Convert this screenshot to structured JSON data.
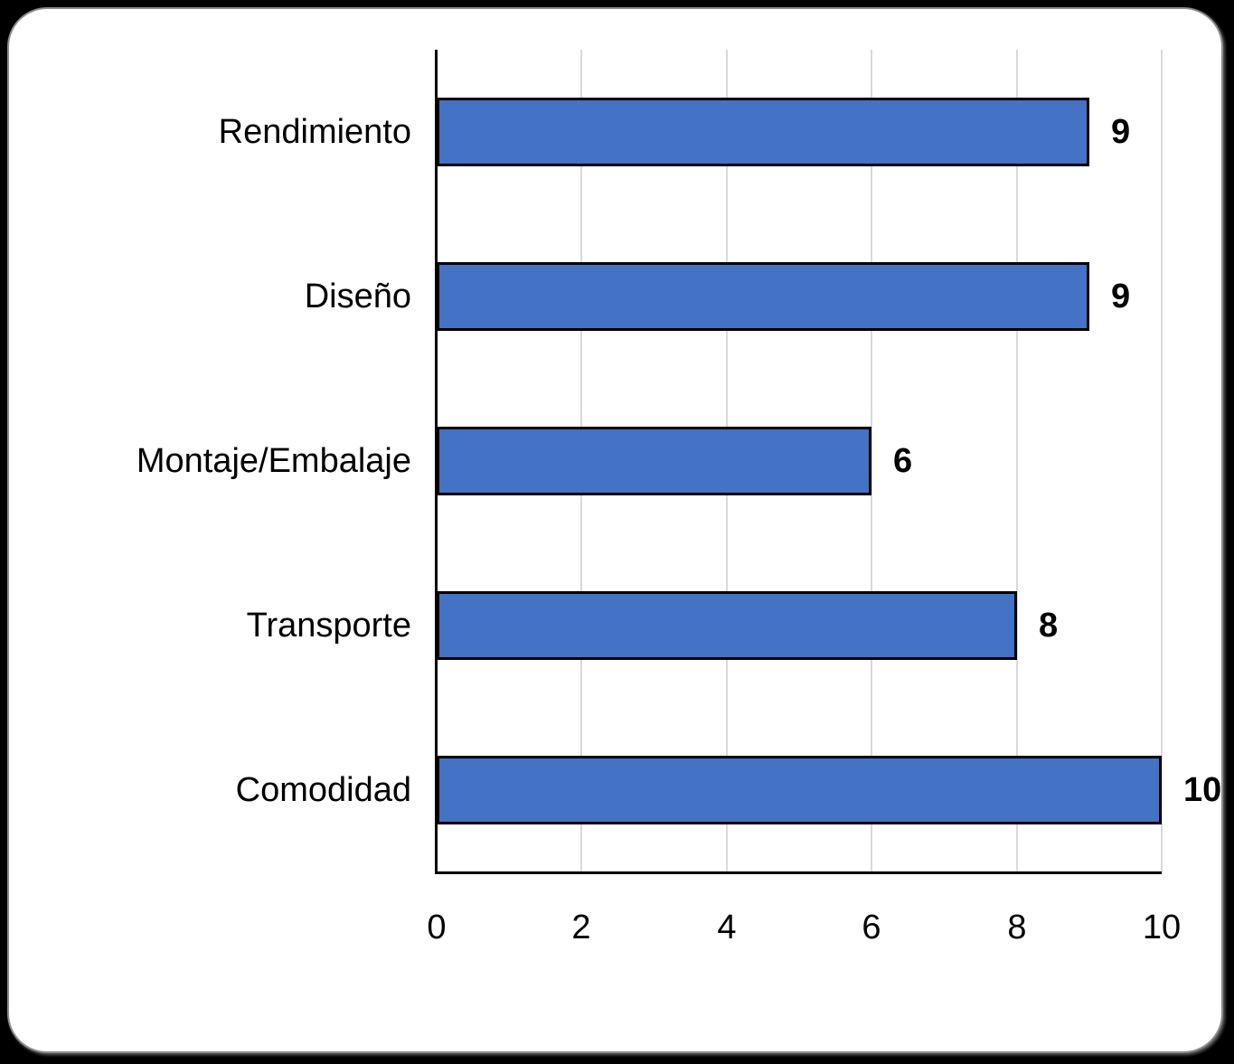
{
  "page": {
    "background_color": "#000000",
    "card_color": "#ffffff",
    "card_border_color": "#8c8c8c"
  },
  "chart_data": {
    "type": "bar",
    "orientation": "horizontal",
    "title": "",
    "xlabel": "",
    "ylabel": "",
    "categories": [
      "Rendimiento",
      "Diseño",
      "Montaje/Embalaje",
      "Transporte",
      "Comodidad"
    ],
    "values": [
      9,
      9,
      6,
      8,
      10
    ],
    "data_labels": [
      "9",
      "9",
      "6",
      "8",
      "10"
    ],
    "xlim": [
      0,
      10
    ],
    "x_ticks": [
      0,
      2,
      4,
      6,
      8,
      10
    ],
    "x_tick_labels": [
      "0",
      "2",
      "4",
      "6",
      "8",
      "10"
    ],
    "grid": true,
    "legend": false,
    "bar_fill_color": "#4472C4",
    "bar_border_color": "#000000",
    "gridline_color": "#D9D9D9",
    "axis_color": "#000000",
    "label_color": "#000000"
  }
}
